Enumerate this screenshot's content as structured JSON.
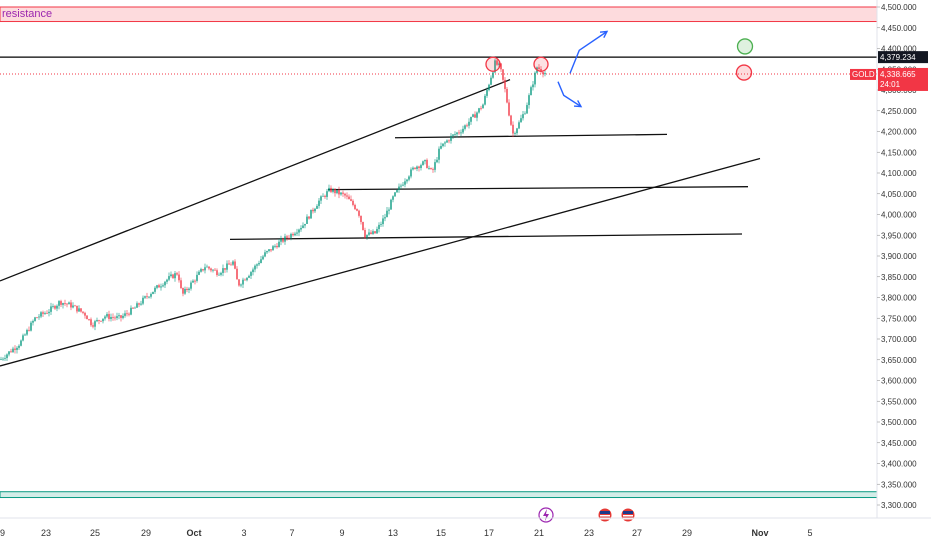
{
  "chart_data": {
    "type": "candlestick",
    "symbol": "GOLD",
    "y_axis": {
      "side": "right",
      "min": 3300,
      "max": 4500,
      "ticks": [
        "4,500.000",
        "4,450.000",
        "4,400.000",
        "4,350.000",
        "4,300.000",
        "4,250.000",
        "4,200.000",
        "4,150.000",
        "4,100.000",
        "4,050.000",
        "4,000.000",
        "3,950.000",
        "3,900.000",
        "3,850.000",
        "3,800.000",
        "3,750.000",
        "3,700.000",
        "3,650.000",
        "3,600.000",
        "3,550.000",
        "3,500.000",
        "3,450.000",
        "3,400.000",
        "3,350.000",
        "3,300.000"
      ]
    },
    "x_axis": {
      "ticks": [
        "9",
        "23",
        "25",
        "29",
        "Oct",
        "3",
        "7",
        "9",
        "13",
        "15",
        "17",
        "21",
        "23",
        "27",
        "29",
        "Nov",
        "5"
      ]
    },
    "zones": [
      {
        "label": "resistance",
        "top": 4500,
        "bottom": 4465,
        "color": "#f23645"
      },
      {
        "label": "",
        "top": 3332,
        "bottom": 3318,
        "color": "#089981"
      }
    ],
    "horizontal_lines": [
      {
        "price": 4379.234,
        "label": "4,379.234",
        "style": "solid",
        "color": "#000000"
      },
      {
        "price": 4338.665,
        "label": "4,338.665",
        "sublabel": "24:01",
        "style": "dotted",
        "color": "#f23645"
      }
    ],
    "price_tag": {
      "symbol": "GOLD",
      "price": "4,338.665",
      "countdown": "24:01"
    },
    "trendlines": [
      {
        "from": [
          0,
          3840
        ],
        "to": [
          510,
          4325
        ]
      },
      {
        "from": [
          0,
          3635
        ],
        "to": [
          760,
          4135
        ]
      },
      {
        "from": [
          395,
          4185
        ],
        "to": [
          667,
          4193
        ]
      },
      {
        "from": [
          328,
          4060
        ],
        "to": [
          748,
          4067
        ]
      },
      {
        "from": [
          230,
          3940
        ],
        "to": [
          742,
          3953
        ]
      }
    ],
    "price_path": [
      [
        0,
        3650
      ],
      [
        20,
        3690
      ],
      [
        35,
        3750
      ],
      [
        50,
        3770
      ],
      [
        60,
        3790
      ],
      [
        72,
        3780
      ],
      [
        85,
        3760
      ],
      [
        92,
        3735
      ],
      [
        105,
        3755
      ],
      [
        120,
        3750
      ],
      [
        135,
        3775
      ],
      [
        150,
        3810
      ],
      [
        165,
        3840
      ],
      [
        178,
        3860
      ],
      [
        182,
        3805
      ],
      [
        195,
        3845
      ],
      [
        205,
        3875
      ],
      [
        218,
        3860
      ],
      [
        233,
        3885
      ],
      [
        238,
        3830
      ],
      [
        252,
        3865
      ],
      [
        265,
        3905
      ],
      [
        278,
        3930
      ],
      [
        290,
        3950
      ],
      [
        303,
        3975
      ],
      [
        318,
        4030
      ],
      [
        330,
        4060
      ],
      [
        345,
        4045
      ],
      [
        358,
        4010
      ],
      [
        365,
        3950
      ],
      [
        375,
        3955
      ],
      [
        385,
        3995
      ],
      [
        393,
        4040
      ],
      [
        405,
        4085
      ],
      [
        415,
        4115
      ],
      [
        425,
        4125
      ],
      [
        432,
        4100
      ],
      [
        440,
        4160
      ],
      [
        450,
        4185
      ],
      [
        462,
        4205
      ],
      [
        475,
        4240
      ],
      [
        483,
        4265
      ],
      [
        490,
        4325
      ],
      [
        495,
        4365
      ],
      [
        500,
        4355
      ],
      [
        505,
        4300
      ],
      [
        510,
        4230
      ],
      [
        513,
        4195
      ],
      [
        518,
        4215
      ],
      [
        525,
        4250
      ],
      [
        532,
        4310
      ],
      [
        537,
        4355
      ],
      [
        543,
        4345
      ],
      [
        546,
        4339
      ]
    ],
    "markers": {
      "red_circles_at_top": [
        [
          493,
          4362
        ],
        [
          541,
          4362
        ]
      ],
      "side_circles": [
        {
          "x": 745,
          "price": 4405,
          "color": "green"
        },
        {
          "x": 744,
          "price": 4342,
          "color": "red"
        }
      ]
    },
    "arrows": [
      {
        "from": [
          570,
          4340
        ],
        "to": [
          607,
          4441
        ],
        "color": "#2962ff"
      },
      {
        "from": [
          558,
          4320
        ],
        "to": [
          581,
          4260
        ],
        "color": "#2962ff"
      }
    ],
    "event_icons_x_labels": [
      "22",
      "25",
      "26"
    ],
    "grid": false,
    "legend": "none"
  }
}
